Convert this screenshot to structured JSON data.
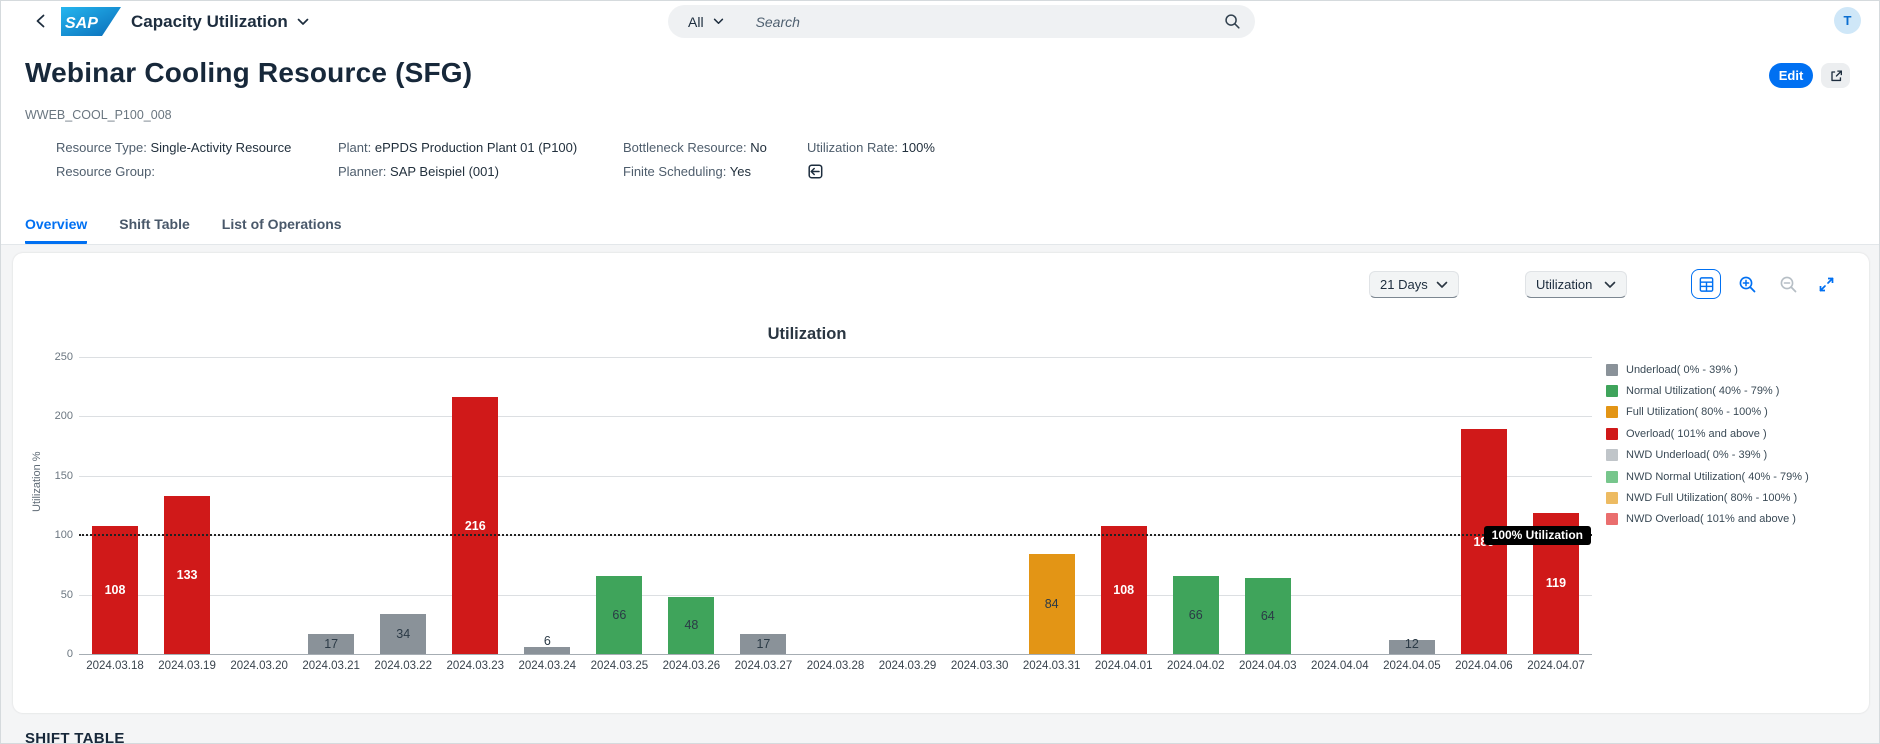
{
  "header": {
    "app_title": "Capacity Utilization",
    "search_scope": "All",
    "search_placeholder": "Search",
    "avatar_initial": "T"
  },
  "page": {
    "title": "Webinar Cooling Resource (SFG)",
    "subtitle": "WWEB_COOL_P100_008",
    "edit_label": "Edit",
    "fields": [
      {
        "label": "Resource Type:",
        "value": "Single-Activity Resource"
      },
      {
        "label": "Plant:",
        "value": "ePPDS Production Plant 01 (P100)"
      },
      {
        "label": "Bottleneck Resource:",
        "value": "No"
      },
      {
        "label": "Utilization Rate:",
        "value": "100%"
      },
      {
        "label": "Resource Group:",
        "value": ""
      },
      {
        "label": "Planner:",
        "value": "SAP Beispiel (001)"
      },
      {
        "label": "Finite Scheduling:",
        "value": "Yes"
      }
    ],
    "tabs": [
      {
        "label": "Overview"
      },
      {
        "label": "Shift Table"
      },
      {
        "label": "List of Operations"
      }
    ],
    "section_footer": "SHIFT TABLE"
  },
  "toolbar": {
    "period_select": "21 Days",
    "view_select": "Utilization"
  },
  "chart_data": {
    "type": "bar",
    "title": "Utilization",
    "ylabel": "Utilization %",
    "ylim": [
      0,
      250
    ],
    "yticks": [
      0,
      50,
      100,
      150,
      200,
      250
    ],
    "grid": true,
    "legend_position": "right",
    "reference_line": {
      "value": 100,
      "label": "100% Utilization"
    },
    "categories": [
      "2024.03.18",
      "2024.03.19",
      "2024.03.20",
      "2024.03.21",
      "2024.03.22",
      "2024.03.23",
      "2024.03.24",
      "2024.03.25",
      "2024.03.26",
      "2024.03.27",
      "2024.03.28",
      "2024.03.29",
      "2024.03.30",
      "2024.03.31",
      "2024.04.01",
      "2024.04.02",
      "2024.04.03",
      "2024.04.04",
      "2024.04.05",
      "2024.04.06",
      "2024.04.07"
    ],
    "values": [
      108,
      133,
      0,
      17,
      34,
      216,
      6,
      66,
      48,
      17,
      0,
      0,
      0,
      84,
      108,
      66,
      64,
      0,
      12,
      189,
      119
    ],
    "statuses": [
      "overload",
      "overload",
      null,
      "underload",
      "underload",
      "overload",
      "underload",
      "normal",
      "normal",
      "underload",
      null,
      null,
      null,
      "full",
      "overload",
      "normal",
      "normal",
      null,
      "underload",
      "overload",
      "overload"
    ],
    "status_colors": {
      "underload": "#8a9299",
      "normal": "#3fa45b",
      "full": "#e39515",
      "overload": "#d01919"
    },
    "legend": [
      {
        "label": "Underload( 0% - 39% )",
        "color": "#8a9299"
      },
      {
        "label": "Normal Utilization( 40% - 79% )",
        "color": "#3fa45b"
      },
      {
        "label": "Full Utilization( 80% - 100% )",
        "color": "#e39515"
      },
      {
        "label": "Overload( 101% and above )",
        "color": "#d01919"
      },
      {
        "label": "NWD Underload( 0% - 39% )",
        "color": "#c0c5c9"
      },
      {
        "label": "NWD Normal Utilization( 40% - 79% )",
        "color": "#77c68c"
      },
      {
        "label": "NWD Full Utilization( 80% - 100% )",
        "color": "#edbb62"
      },
      {
        "label": "NWD Overload( 101% and above )",
        "color": "#ea6e6e"
      }
    ]
  }
}
